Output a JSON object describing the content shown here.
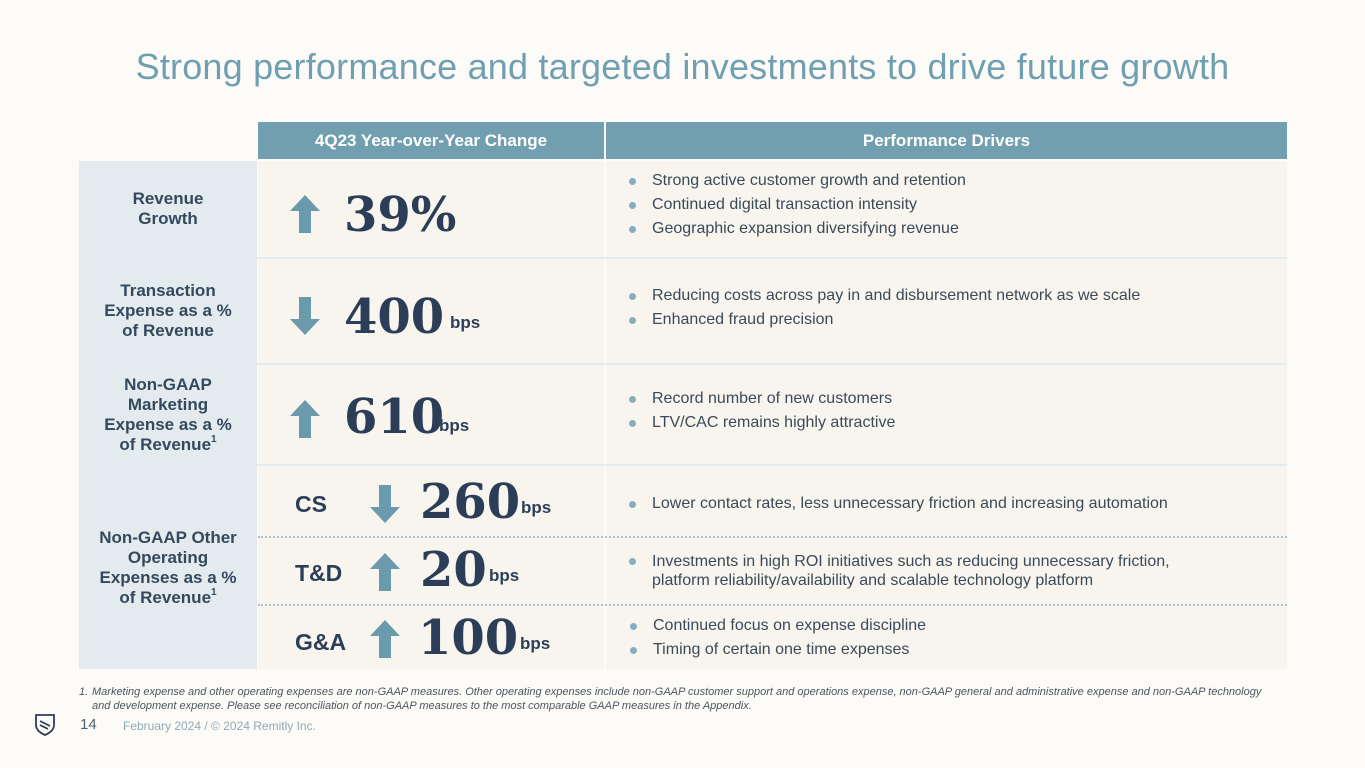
{
  "title": "Strong performance and targeted investments to drive future growth",
  "table": {
    "header": {
      "change_col": "4Q23 Year-over-Year Change",
      "drivers_col": "Performance Drivers"
    },
    "rows": [
      {
        "label": "Revenue Growth",
        "direction": "up",
        "value": "39%",
        "unit": "",
        "drivers": [
          "Strong active customer growth and retention",
          "Continued digital transaction intensity",
          "Geographic expansion diversifying revenue"
        ]
      },
      {
        "label": "Transaction Expense as a % of Revenue",
        "direction": "down",
        "value": "400",
        "unit": "bps",
        "drivers": [
          "Reducing costs across pay in and disbursement network as we scale",
          "Enhanced fraud precision"
        ]
      },
      {
        "label": "Non-GAAP Marketing Expense as a % of Revenue",
        "footnote_mark": "1",
        "direction": "up",
        "value": "610",
        "unit": "bps",
        "drivers": [
          "Record number of new customers",
          "LTV/CAC remains highly attractive"
        ]
      }
    ],
    "other_opex": {
      "label": "Non-GAAP Other Operating Expenses as a % of Revenue",
      "footnote_mark": "1",
      "items": [
        {
          "name": "CS",
          "direction": "down",
          "value": "260",
          "unit": "bps",
          "drivers": [
            "Lower contact rates, less unnecessary friction and increasing automation"
          ]
        },
        {
          "name": "T&D",
          "direction": "up",
          "value": "20",
          "unit": "bps",
          "drivers": [
            "Investments in high ROI initiatives such as reducing unnecessary friction, platform reliability/availability and scalable technology platform"
          ]
        },
        {
          "name": "G&A",
          "direction": "up",
          "value": "100",
          "unit": "bps",
          "drivers": [
            "Continued focus on expense discipline",
            "Timing of certain one time expenses"
          ]
        }
      ]
    }
  },
  "footnote": {
    "number": "1.",
    "text": "Marketing expense and other operating expenses are non-GAAP measures. Other operating expenses include non-GAAP customer support and operations expense, non-GAAP general and administrative expense and non-GAAP technology and development expense. Please see reconciliation of non-GAAP measures to the most comparable GAAP measures in the Appendix."
  },
  "footer": {
    "page_number": "14",
    "date_copyright": "February 2024 / © 2024 Remitly Inc."
  },
  "colors": {
    "title": "#6f9fb1",
    "header_bg": "#719fb0",
    "label_bg": "#e4ebee",
    "arrow": "#6a9aab",
    "value_text": "#2c3e57"
  },
  "icons": {
    "logo": "remitly-shield-logo",
    "arrow_up": "arrow-up-icon",
    "arrow_down": "arrow-down-icon"
  }
}
